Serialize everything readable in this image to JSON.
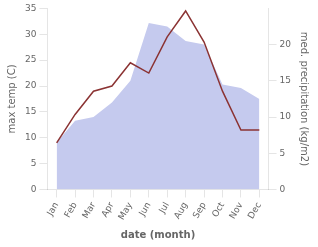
{
  "chart_data": {
    "type": "line",
    "categories": [
      "Jan",
      "Feb",
      "Mar",
      "Apr",
      "May",
      "Jun",
      "Jul",
      "Aug",
      "Sep",
      "Oct",
      "Nov",
      "Dec"
    ],
    "series": [
      {
        "type": "area",
        "axis": "y2",
        "color": "#c5caee",
        "values": [
          6.5,
          9.5,
          10.0,
          12.0,
          15.0,
          23.0,
          22.5,
          20.5,
          20.0,
          14.5,
          14.0,
          12.5
        ]
      },
      {
        "type": "line",
        "axis": "y",
        "color": "#8b3333",
        "values": [
          9.0,
          14.5,
          19.0,
          20.0,
          24.5,
          22.5,
          29.5,
          34.5,
          28.5,
          19.0,
          11.5,
          11.5
        ]
      }
    ],
    "xlabel": "date (month)",
    "ylabel": "max temp (C)",
    "y2label": "med. precipitation (kg/m2)",
    "ylim": [
      0,
      35
    ],
    "yticks": [
      0,
      5,
      10,
      15,
      20,
      25,
      30,
      35
    ],
    "y2lim": [
      0,
      25
    ],
    "y2ticks": [
      0,
      5,
      10,
      15,
      20
    ],
    "grid": false
  }
}
